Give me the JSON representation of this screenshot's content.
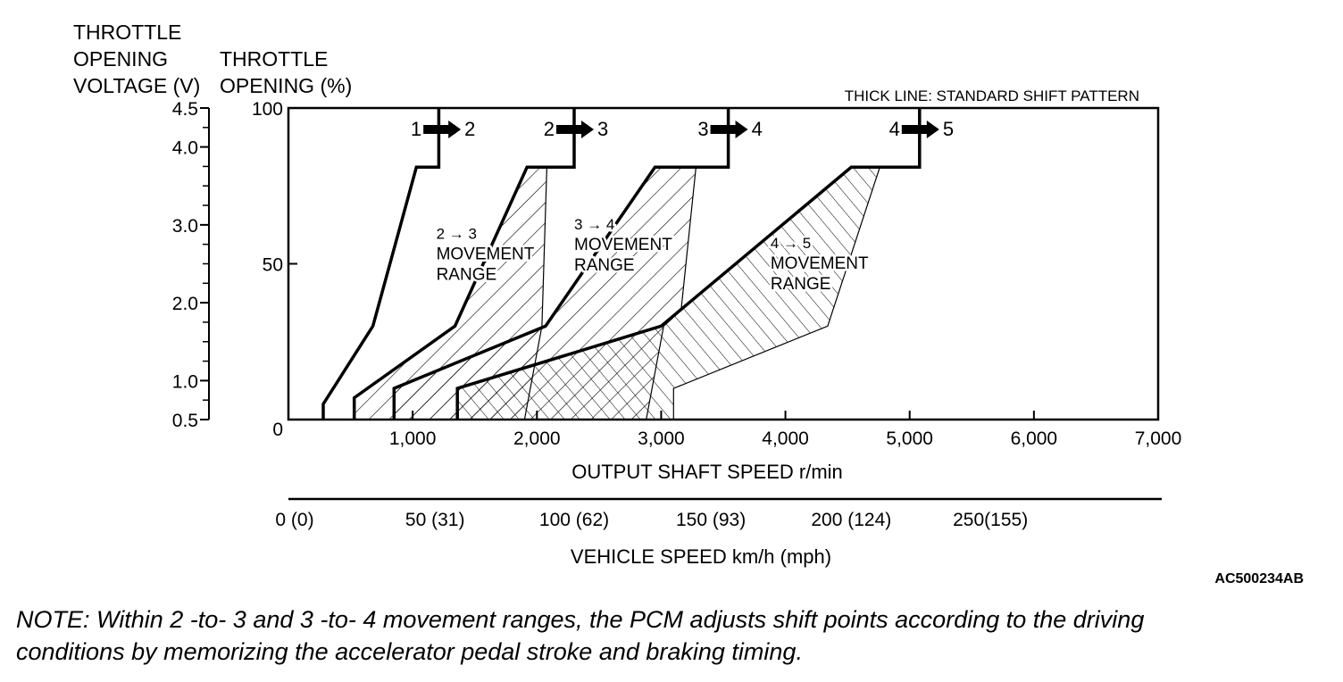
{
  "chart_data": {
    "type": "line",
    "title": "",
    "legend_note": "THICK LINE: STANDARD SHIFT PATTERN",
    "figure_id": "AC500234AB",
    "left_axis_voltage": {
      "label_lines": [
        "THROTTLE",
        "OPENING",
        "VOLTAGE (V)"
      ],
      "ticks": [
        "4.5",
        "4.0",
        "3.0",
        "2.0",
        "1.0",
        "0.5"
      ],
      "tick_values": [
        4.5,
        4.0,
        3.0,
        2.0,
        1.0,
        0.5
      ],
      "range": [
        0.5,
        4.5
      ]
    },
    "left_axis_percent": {
      "label_lines": [
        "THROTTLE",
        "OPENING (%)"
      ],
      "ticks": [
        "100",
        "50",
        "0"
      ],
      "tick_values": [
        100,
        50,
        0
      ],
      "range": [
        0,
        100
      ]
    },
    "x_axis": {
      "label": "OUTPUT SHAFT SPEED r/min",
      "ticks": [
        "1,000",
        "2,000",
        "3,000",
        "4,000",
        "5,000",
        "6,000",
        "7,000"
      ],
      "tick_values": [
        1000,
        2000,
        3000,
        4000,
        5000,
        6000,
        7000
      ],
      "range": [
        0,
        7000
      ]
    },
    "x_axis_secondary": {
      "label": "VEHICLE SPEED km/h (mph)",
      "ticks": [
        "0 (0)",
        "50 (31)",
        "100 (62)",
        "150 (93)",
        "200 (124)",
        "250(155)"
      ],
      "tick_values": [
        0,
        50,
        100,
        150,
        200,
        250
      ],
      "tick_rpm": [
        0,
        1180,
        2300,
        3400,
        4530,
        5650
      ]
    },
    "shift_labels": [
      {
        "from": "1",
        "to": "2",
        "rpm": 1230
      },
      {
        "from": "2",
        "to": "3",
        "rpm": 2300
      },
      {
        "from": "3",
        "to": "4",
        "rpm": 3540
      },
      {
        "from": "4",
        "to": "5",
        "rpm": 5080
      }
    ],
    "series": [
      {
        "line": "thick",
        "points": [
          [
            280,
            0
          ],
          [
            280,
            5
          ],
          [
            680,
            30
          ],
          [
            1030,
            81
          ],
          [
            1210,
            81
          ],
          [
            1210,
            100
          ]
        ]
      },
      {
        "line": "thick",
        "points": [
          [
            530,
            0
          ],
          [
            530,
            7
          ],
          [
            1340,
            30
          ],
          [
            1920,
            81
          ],
          [
            2300,
            81
          ],
          [
            2300,
            100
          ]
        ]
      },
      {
        "line": "thick",
        "points": [
          [
            850,
            0
          ],
          [
            850,
            10
          ],
          [
            2070,
            30
          ],
          [
            2950,
            81
          ],
          [
            3540,
            81
          ],
          [
            3540,
            100
          ]
        ]
      },
      {
        "line": "thick",
        "points": [
          [
            1360,
            0
          ],
          [
            1360,
            10
          ],
          [
            3000,
            30
          ],
          [
            4530,
            81
          ],
          [
            5080,
            81
          ],
          [
            5080,
            100
          ]
        ]
      }
    ],
    "movement_ranges": [
      {
        "label_lines": [
          "2 → 3",
          "MOVEMENT",
          "RANGE"
        ],
        "label_anchor": [
          1190,
          58
        ],
        "left": [
          [
            530,
            0
          ],
          [
            530,
            7
          ],
          [
            1340,
            30
          ],
          [
            1920,
            81
          ]
        ],
        "right": [
          [
            2080,
            81
          ],
          [
            2040,
            30
          ],
          [
            1900,
            0
          ]
        ]
      },
      {
        "label_lines": [
          "3 → 4",
          "MOVEMENT",
          "RANGE"
        ],
        "label_anchor": [
          2300,
          61
        ],
        "left": [
          [
            850,
            0
          ],
          [
            850,
            10
          ],
          [
            2070,
            30
          ],
          [
            2950,
            81
          ]
        ],
        "right": [
          [
            3280,
            81
          ],
          [
            3160,
            35
          ],
          [
            3020,
            30
          ],
          [
            2880,
            0
          ]
        ]
      },
      {
        "label_lines": [
          "4 → 5",
          "MOVEMENT",
          "RANGE"
        ],
        "label_anchor": [
          3880,
          55
        ],
        "left": [
          [
            1360,
            0
          ],
          [
            1360,
            10
          ],
          [
            3000,
            30
          ],
          [
            4530,
            81
          ]
        ],
        "right": [
          [
            4760,
            81
          ],
          [
            4340,
            30
          ],
          [
            3100,
            10
          ],
          [
            3100,
            0
          ]
        ]
      }
    ]
  },
  "note": {
    "lines": [
      "NOTE: Within 2 -to- 3 and 3 -to- 4 movement ranges, the PCM adjusts shift points according to the driving",
      "conditions by memorizing the accelerator pedal stroke and braking timing."
    ]
  }
}
